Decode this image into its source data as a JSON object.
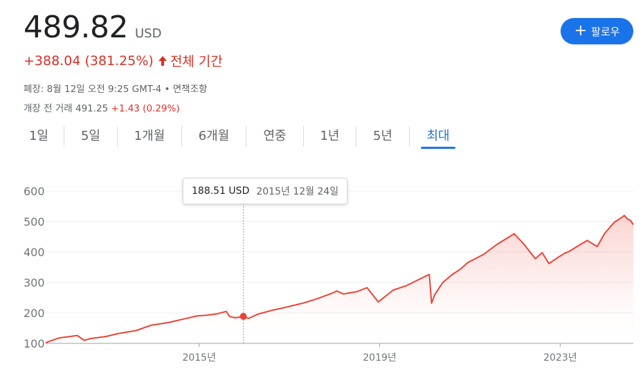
{
  "quote": {
    "price": "489.82",
    "currency": "USD",
    "change": "+388.04 (381.25%)",
    "period": "전체 기간",
    "closed_info": "폐장: 8월 12일 오전 9:25 GMT-4 • 면책조항",
    "premarket_label": "개장 전 거래 491.25",
    "premarket_change": "+1.43 (0.29%)"
  },
  "follow_button": {
    "label": "팔로우"
  },
  "tabs": [
    "1일",
    "5일",
    "1개월",
    "6개월",
    "연중",
    "1년",
    "5년",
    "최대"
  ],
  "active_tab": "최대",
  "colors": {
    "line": "#ea4335",
    "accent": "#1a73e8",
    "negative": "#d93025"
  },
  "tooltip": {
    "value": "188.51 USD",
    "date": "2015년 12월 24일"
  },
  "chart_data": {
    "type": "area",
    "series": [
      {
        "x": [
          2011.6,
          2011.9,
          2012.3,
          2012.45,
          2012.6,
          2012.95,
          2013.2,
          2013.6,
          2013.95,
          2014.3,
          2014.6,
          2014.95,
          2015.2,
          2015.4,
          2015.6,
          2015.68,
          2015.8,
          2015.98,
          2016.1,
          2016.3,
          2016.6,
          2016.9,
          2017.3,
          2017.6,
          2017.95,
          2018.05,
          2018.2,
          2018.5,
          2018.72,
          2018.97,
          2019.3,
          2019.6,
          2019.98,
          2020.1,
          2020.15,
          2020.22,
          2020.4,
          2020.6,
          2020.8,
          2020.95,
          2021.3,
          2021.6,
          2021.98,
          2022.2,
          2022.45,
          2022.6,
          2022.75,
          2022.95,
          2023.1,
          2023.2,
          2023.45,
          2023.6,
          2023.82,
          2023.98,
          2024.2,
          2024.35,
          2024.42,
          2024.5,
          2024.55,
          2024.62
        ],
        "values": [
          102,
          118,
          126,
          110,
          116,
          123,
          132,
          142,
          160,
          168,
          178,
          190,
          193,
          197,
          205,
          188,
          184,
          188,
          182,
          196,
          208,
          218,
          232,
          246,
          265,
          272,
          262,
          270,
          283,
          236,
          275,
          290,
          318,
          326,
          232,
          260,
          300,
          325,
          345,
          365,
          392,
          425,
          460,
          425,
          378,
          398,
          362,
          382,
          396,
          402,
          425,
          438,
          418,
          460,
          498,
          512,
          520,
          507,
          505,
          489.82
        ]
      }
    ],
    "xticks": [
      2015,
      2019,
      2023
    ],
    "xtick_labels": [
      "2015년",
      "2019년",
      "2023년"
    ],
    "yticks": [
      100,
      200,
      300,
      400,
      500,
      600
    ],
    "ylim": [
      100,
      600
    ],
    "grid": true,
    "highlight": {
      "x": 2015.98,
      "value": 188.51
    }
  }
}
